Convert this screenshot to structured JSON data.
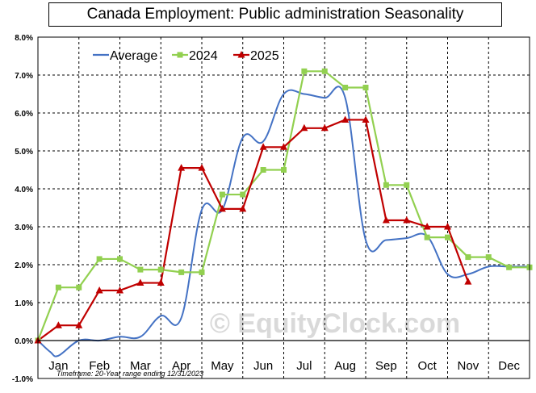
{
  "title": "Canada  Employment:  Public administration  Seasonality",
  "caption": "Timeframe: 20-Year range ending 12/31/2023",
  "watermark": "EquityClock.com",
  "colors": {
    "average": "#4472c4",
    "2024": "#92d050",
    "2025": "#c00000",
    "grid": "#000000",
    "watermark": "#d9d9d9"
  },
  "chart_data": {
    "type": "line",
    "title": "Canada  Employment:  Public administration  Seasonality",
    "ylim": [
      -1.0,
      8.0
    ],
    "yticks": [
      "-1.0%",
      "0.0%",
      "1.0%",
      "2.0%",
      "3.0%",
      "4.0%",
      "5.0%",
      "6.0%",
      "7.0%",
      "8.0%"
    ],
    "ytick_values": [
      -1,
      0,
      1,
      2,
      3,
      4,
      5,
      6,
      7,
      8
    ],
    "categories": [
      "Jan",
      "Feb",
      "Mar",
      "Apr",
      "May",
      "Jun",
      "Jul",
      "Aug",
      "Sep",
      "Oct",
      "Nov",
      "Dec"
    ],
    "grid": true,
    "legend_position": "top-left",
    "series": [
      {
        "name": "Average",
        "style": "smooth-line",
        "x": [
          0,
          0.3,
          0.5,
          1.0,
          1.5,
          2.0,
          2.5,
          3.0,
          3.5,
          4.0,
          4.5,
          5.0,
          5.5,
          6.0,
          6.5,
          7.0,
          7.5,
          8.0,
          8.5,
          9.0,
          9.5,
          10.0,
          10.5,
          11.0,
          11.5,
          12.0
        ],
        "values": [
          0.0,
          -0.3,
          -0.4,
          0.0,
          0.0,
          0.1,
          0.1,
          0.65,
          0.6,
          3.45,
          3.45,
          5.35,
          5.25,
          6.5,
          6.5,
          6.4,
          6.4,
          2.65,
          2.65,
          2.7,
          2.75,
          1.75,
          1.75,
          1.95,
          1.95,
          1.95
        ]
      },
      {
        "name": "2024",
        "marker": "square",
        "x": [
          0,
          0.5,
          1.0,
          1.5,
          2.0,
          2.5,
          3.0,
          3.5,
          4.0,
          4.5,
          5.0,
          5.5,
          6.0,
          6.5,
          7.0,
          7.5,
          8.0,
          8.5,
          9.0,
          9.5,
          10.0,
          10.5,
          11.0,
          11.5,
          12.0
        ],
        "values": [
          0.0,
          1.4,
          1.4,
          2.15,
          2.15,
          1.87,
          1.87,
          1.8,
          1.8,
          3.85,
          3.85,
          4.5,
          4.5,
          7.1,
          7.1,
          6.67,
          6.67,
          4.1,
          4.1,
          2.72,
          2.72,
          2.2,
          2.2,
          1.93,
          1.93
        ]
      },
      {
        "name": "2025",
        "marker": "triangle",
        "x": [
          0,
          0.5,
          1.0,
          1.5,
          2.0,
          2.5,
          3.0,
          3.5,
          4.0,
          4.5,
          5.0,
          5.5,
          6.0,
          6.5,
          7.0,
          7.5,
          8.0,
          8.5,
          9.0,
          9.5,
          10.0,
          10.5
        ],
        "values": [
          0.0,
          0.4,
          0.4,
          1.32,
          1.32,
          1.52,
          1.52,
          4.55,
          4.55,
          3.47,
          3.47,
          5.1,
          5.1,
          5.6,
          5.6,
          5.82,
          5.82,
          3.17,
          3.17,
          3.0,
          3.0,
          1.55
        ]
      }
    ]
  }
}
